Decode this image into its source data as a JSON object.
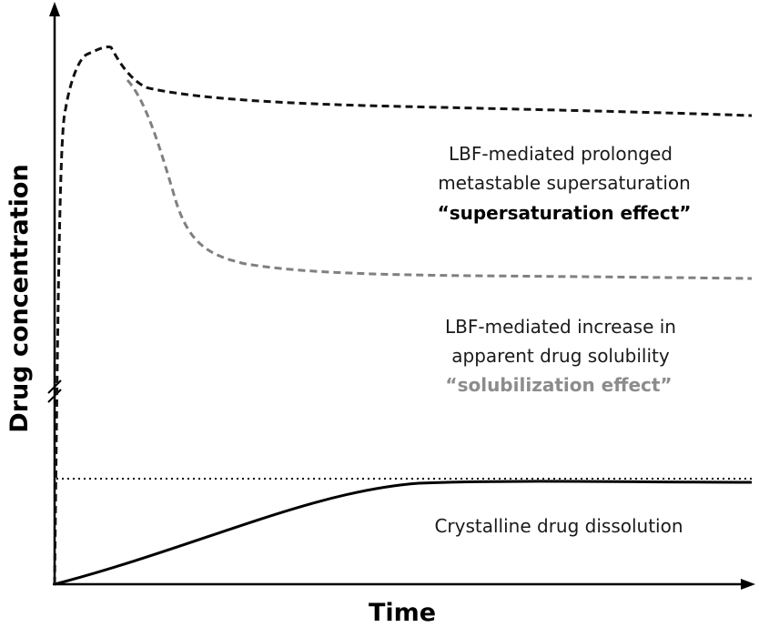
{
  "axes": {
    "x_label": "Time",
    "y_label": "Drug concentration",
    "color": "#000000"
  },
  "annotations": {
    "supersaturation": {
      "line1": "LBF-mediated prolonged",
      "line2": "metastable supersaturation",
      "emphasis": "“supersaturation effect”"
    },
    "solubilization": {
      "line1": "LBF-mediated increase in",
      "line2": "apparent drug solubility",
      "emphasis": "“solubilization effect”"
    },
    "crystalline": {
      "line1": "Crystalline drug dissolution"
    }
  },
  "curves": {
    "supersaturation_color": "#111111",
    "solubilization_color": "#808080",
    "crystalline_color": "#000000",
    "solubility_limit_color": "#000000"
  }
}
